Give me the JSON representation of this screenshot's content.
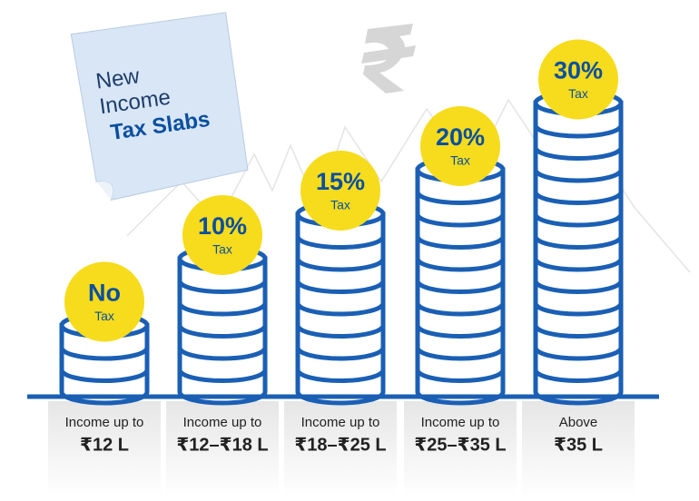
{
  "note": {
    "lines": [
      "New",
      "Income",
      "Tax Slabs"
    ]
  },
  "slabs": [
    {
      "rate": "No",
      "rate_sub": "Tax",
      "label": "Income up to",
      "amount": "₹12 L"
    },
    {
      "rate": "10%",
      "rate_sub": "Tax",
      "label": "Income up to",
      "amount": "₹12–₹18 L"
    },
    {
      "rate": "15%",
      "rate_sub": "Tax",
      "label": "Income up to",
      "amount": "₹18–₹25 L"
    },
    {
      "rate": "20%",
      "rate_sub": "Tax",
      "label": "Income up to",
      "amount": "₹25–₹35 L"
    },
    {
      "rate": "30%",
      "rate_sub": "Tax",
      "label": "Above",
      "amount": "₹35 L"
    }
  ]
}
